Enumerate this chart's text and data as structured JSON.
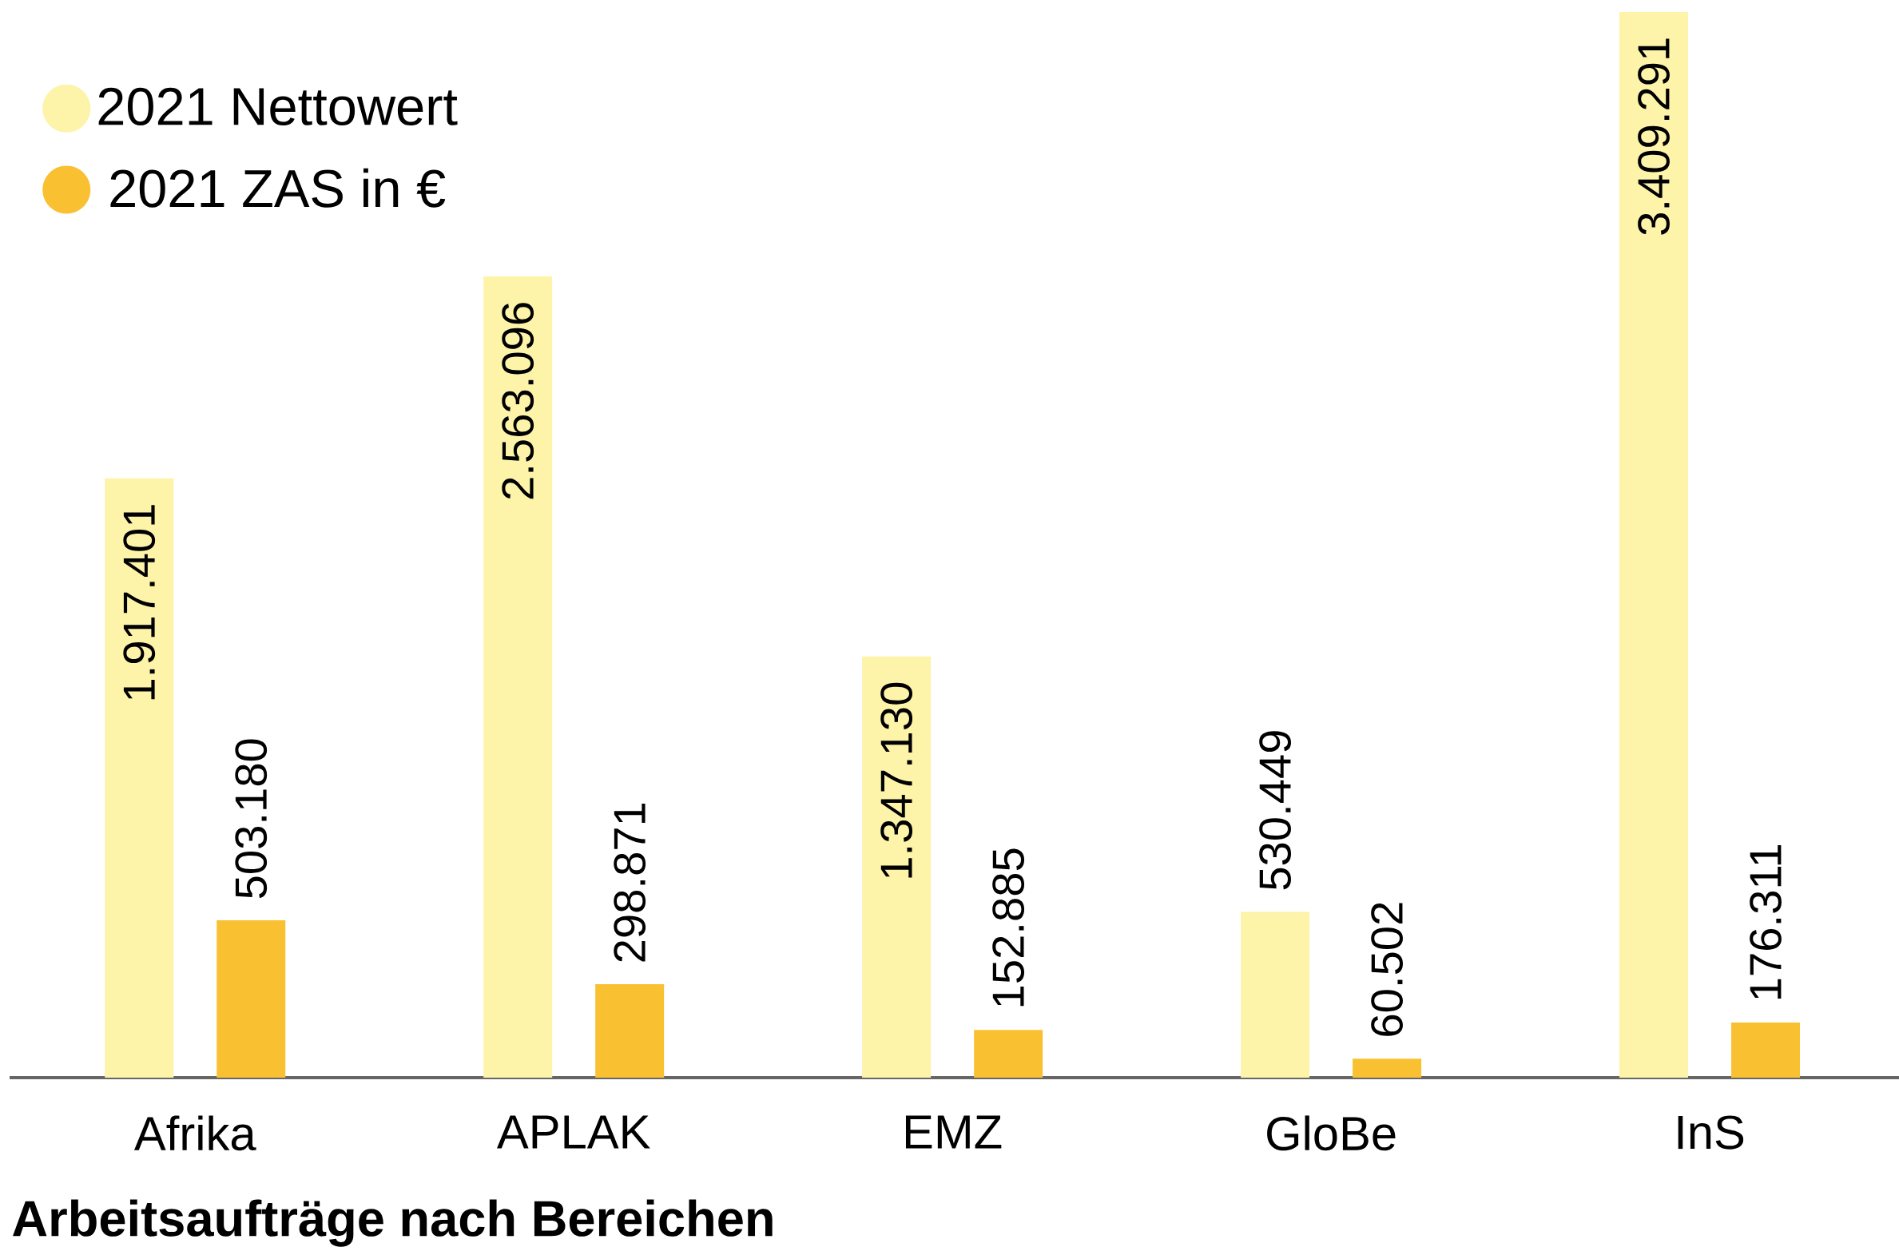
{
  "chart_data": {
    "type": "bar",
    "xlabel": "**Arbeitsaufträge nach Bereichen**",
    "categories": [
      "Afrika",
      "APLAK",
      "EMZ",
      "GloBe",
      "InS"
    ],
    "series": [
      {
        "name": "2021 Nettowert",
        "color": "#fdf3a9",
        "values": [
          1917401,
          2563096,
          1347130,
          530449,
          3409291
        ],
        "value_labels": [
          "1.917.401",
          "2.563.096",
          "1.347.130",
          "530.449",
          "3.409.291"
        ]
      },
      {
        "name": "2021 ZAS in €",
        "color": "#f9c032",
        "values": [
          503180,
          298871,
          152885,
          60502,
          176311
        ],
        "value_labels": [
          "503.180",
          "298.871",
          "152.885",
          "60.502",
          "176.311"
        ]
      }
    ],
    "legend": "top left"
  }
}
